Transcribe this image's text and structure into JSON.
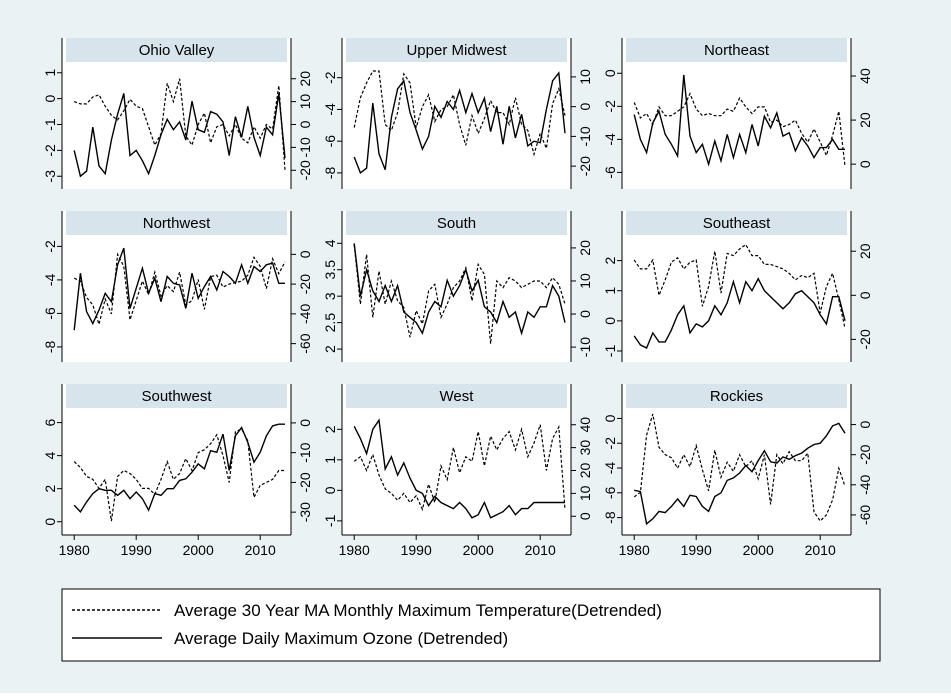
{
  "chart_data": {
    "type": "line",
    "layout": "3x3 small multiples, dual y-axes (left: ozone, right: temperature)",
    "x_ticks": [
      1980,
      1990,
      2000,
      2010
    ],
    "xlim": [
      1979,
      2014
    ],
    "legend": {
      "placement": "bottom",
      "entries": [
        {
          "label": "Average 30 Year MA Monthly Maximum Temperature(Detrended)",
          "style": "dashed"
        },
        {
          "label": "Average Daily Maximum Ozone (Detrended)",
          "style": "solid"
        }
      ]
    },
    "colors": {
      "figure_bg": "#eaf2f3",
      "plot_bg": "#ffffff",
      "strip": "#d8e4ec",
      "line": "#000000"
    },
    "panels": [
      {
        "title": "Ohio Valley",
        "left_ticks": [
          "-3",
          "-2",
          "-1",
          "0",
          "1"
        ],
        "left_lim": [
          -3.3,
          1.3
        ],
        "right_ticks": [
          "-20",
          "-10",
          "0",
          "10",
          "20"
        ],
        "right_lim": [
          -26,
          26
        ],
        "ozone": [
          -2.0,
          -3.0,
          -2.8,
          -1.1,
          -2.6,
          -2.9,
          -1.6,
          -0.6,
          0.2,
          -2.2,
          -2.0,
          -2.4,
          -2.9,
          -2.2,
          -1.4,
          -0.8,
          -1.2,
          -0.9,
          -1.6,
          -0.1,
          -1.2,
          -1.3,
          -0.5,
          -0.6,
          -0.9,
          -2.2,
          -0.7,
          -1.5,
          -0.3,
          -1.5,
          -2.2,
          -1.1,
          -1.4,
          0.2,
          -2.3
        ],
        "temperature": [
          10,
          9,
          9,
          12,
          13,
          8,
          4,
          2,
          6,
          11,
          8,
          7,
          -1,
          -9,
          -4,
          18,
          10,
          20,
          -5,
          -9,
          0,
          5,
          -8,
          -1,
          0,
          -5,
          0,
          -6,
          -8,
          -1,
          -6,
          0,
          -2,
          17,
          -20
        ]
      },
      {
        "title": "Upper Midwest",
        "left_ticks": [
          "-8",
          "-6",
          "-4",
          "-2"
        ],
        "left_lim": [
          -8.7,
          -1.2
        ],
        "right_ticks": [
          "-20",
          "-10",
          "0",
          "10"
        ],
        "right_lim": [
          -26,
          14
        ],
        "ozone": [
          -7.0,
          -8.0,
          -7.7,
          -3.6,
          -6.8,
          -7.8,
          -4.5,
          -2.7,
          -2.2,
          -4.2,
          -5.3,
          -6.5,
          -5.7,
          -3.8,
          -4.5,
          -3.5,
          -4.0,
          -2.8,
          -4.2,
          -3.0,
          -4.2,
          -3.3,
          -5.4,
          -3.8,
          -6.2,
          -3.8,
          -5.8,
          -4.3,
          -6.3,
          -6.0,
          -6.1,
          -4.0,
          -2.2,
          -1.7,
          -5.5
        ],
        "temperature": [
          -7,
          3,
          8,
          12,
          12,
          -6,
          -8,
          -2,
          11,
          8,
          -7,
          0,
          4,
          -5,
          -1,
          0,
          4,
          -6,
          -13,
          -3,
          -9,
          -4,
          2,
          -2,
          -2,
          -6,
          3,
          -6,
          -8,
          -16,
          -9,
          -14,
          1,
          6,
          -3
        ]
      },
      {
        "title": "Northeast",
        "left_ticks": [
          "-6",
          "-4",
          "-2",
          "0"
        ],
        "left_lim": [
          -6.7,
          0.5
        ],
        "right_ticks": [
          "0",
          "20",
          "40"
        ],
        "right_lim": [
          -9,
          45
        ],
        "ozone": [
          -2.5,
          -4.0,
          -4.8,
          -3.0,
          -2.3,
          -3.7,
          -4.3,
          -5.0,
          -0.1,
          -3.8,
          -4.8,
          -4.3,
          -5.5,
          -4.1,
          -5.3,
          -3.7,
          -5.1,
          -3.7,
          -4.8,
          -3.1,
          -4.4,
          -2.6,
          -3.3,
          -2.4,
          -3.8,
          -3.6,
          -4.7,
          -3.9,
          -4.4,
          -5.1,
          -4.5,
          -4.5,
          -4.0,
          -4.6,
          -4.6
        ],
        "temperature": [
          28,
          21,
          23,
          18,
          26,
          22,
          22,
          24,
          26,
          32,
          25,
          22,
          23,
          22,
          22,
          25,
          24,
          30,
          26,
          23,
          26,
          26,
          19,
          20,
          17,
          18,
          20,
          14,
          10,
          16,
          10,
          4,
          13,
          24,
          -1
        ]
      },
      {
        "title": "Northwest",
        "left_ticks": [
          "-8",
          "-6",
          "-4",
          "-2"
        ],
        "left_lim": [
          -8.6,
          -1.5
        ],
        "right_ticks": [
          "-60",
          "-40",
          "-20",
          "0"
        ],
        "right_lim": [
          -69,
          11
        ],
        "ozone": [
          -7.0,
          -3.6,
          -5.9,
          -6.6,
          -5.8,
          -4.8,
          -5.3,
          -3.1,
          -2.1,
          -5.7,
          -4.5,
          -3.3,
          -4.8,
          -3.9,
          -5.3,
          -3.8,
          -4.2,
          -4.3,
          -5.7,
          -3.6,
          -5.1,
          -4.4,
          -3.8,
          -4.6,
          -3.5,
          -3.8,
          -4.2,
          -3.1,
          -4.2,
          -3.2,
          -3.5,
          -3.1,
          -3.0,
          -4.2,
          -4.2
        ],
        "temperature": [
          -16,
          -18,
          -29,
          -34,
          -47,
          -30,
          -40,
          0,
          -8,
          -44,
          -31,
          -18,
          -27,
          -12,
          -28,
          -21,
          -25,
          -12,
          -34,
          -31,
          -17,
          -37,
          -15,
          -14,
          -22,
          -20,
          -19,
          -18,
          -14,
          -2,
          -8,
          -23,
          -3,
          -13,
          -5
        ]
      },
      {
        "title": "South",
        "left_ticks": [
          "2",
          "2.5",
          "3",
          "3.5",
          "4"
        ],
        "left_lim": [
          1.85,
          4.1
        ],
        "right_ticks": [
          "-10",
          "0",
          "10",
          "20"
        ],
        "right_lim": [
          -13,
          23
        ],
        "ozone": [
          4.0,
          3.0,
          3.5,
          3.1,
          2.9,
          3.2,
          2.9,
          3.2,
          2.7,
          2.6,
          2.5,
          2.3,
          2.7,
          2.9,
          2.8,
          3.3,
          3.0,
          3.2,
          3.5,
          3.1,
          3.3,
          2.8,
          2.7,
          2.5,
          2.9,
          2.6,
          2.7,
          2.3,
          2.7,
          2.6,
          2.8,
          2.8,
          3.2,
          3.0,
          2.5
        ],
        "temperature": [
          21,
          3,
          18,
          -1,
          13,
          3,
          10,
          4,
          2,
          -7,
          1,
          -3,
          7,
          9,
          -1,
          3,
          8,
          10,
          14,
          4,
          15,
          12,
          -9,
          10,
          8,
          11,
          10,
          8,
          9,
          10,
          10,
          8,
          11,
          9,
          3
        ]
      },
      {
        "title": "Southeast",
        "left_ticks": [
          "-1",
          "0",
          "1",
          "2"
        ],
        "left_lim": [
          -1.2,
          2.75
        ],
        "right_ticks": [
          "-20",
          "0",
          "20"
        ],
        "right_lim": [
          -28,
          26
        ],
        "ozone": [
          -0.5,
          -0.8,
          -0.9,
          -0.4,
          -0.7,
          -0.7,
          -0.3,
          0.2,
          0.5,
          -0.4,
          -0.1,
          -0.2,
          0.0,
          0.5,
          0.2,
          0.6,
          1.3,
          0.6,
          1.3,
          1.0,
          1.4,
          1.0,
          0.8,
          0.6,
          0.4,
          0.6,
          0.9,
          1.0,
          0.8,
          0.6,
          0.2,
          -0.1,
          0.8,
          0.8,
          0.0
        ],
        "temperature": [
          16,
          12,
          12,
          16,
          0,
          7,
          15,
          17,
          12,
          15,
          16,
          -5,
          4,
          20,
          1,
          19,
          18,
          21,
          23,
          18,
          18,
          14,
          14,
          13,
          12,
          10,
          7,
          9,
          8,
          10,
          -8,
          4,
          10,
          -2,
          -15
        ]
      },
      {
        "title": "Southwest",
        "left_ticks": [
          "0",
          "2",
          "4",
          "6"
        ],
        "left_lim": [
          -0.5,
          6.7
        ],
        "right_ticks": [
          "-30",
          "-20",
          "-10",
          "0"
        ],
        "right_lim": [
          -36,
          4
        ],
        "ozone": [
          1.0,
          0.6,
          1.2,
          1.7,
          2.0,
          1.9,
          1.9,
          1.6,
          1.9,
          1.4,
          1.8,
          1.4,
          0.7,
          1.7,
          1.6,
          2.0,
          2.0,
          2.5,
          2.6,
          3.0,
          3.5,
          3.2,
          4.3,
          4.2,
          5.3,
          3.1,
          5.2,
          5.7,
          4.8,
          3.6,
          4.2,
          5.2,
          5.8,
          5.9,
          5.9
        ],
        "temperature": [
          -13,
          -15,
          -18,
          -19,
          -22,
          -19,
          -33,
          -18,
          -16,
          -17,
          -19,
          -22,
          -22,
          -24,
          -19,
          -13,
          -19,
          -17,
          -12,
          -16,
          -10,
          -9,
          -7,
          -4,
          -11,
          -20,
          -3,
          -2,
          -6,
          -25,
          -21,
          -20,
          -19,
          -16,
          -16
        ]
      },
      {
        "title": "West",
        "left_ticks": [
          "-1",
          "0",
          "1",
          "2"
        ],
        "left_lim": [
          -1.3,
          2.6
        ],
        "right_ticks": [
          "0",
          "10",
          "20",
          "30",
          "40"
        ],
        "right_lim": [
          -6,
          46
        ],
        "ozone": [
          2.1,
          1.7,
          1.2,
          2.0,
          2.3,
          0.7,
          1.1,
          0.5,
          0.9,
          0.4,
          0.0,
          -0.1,
          -0.5,
          -0.2,
          -0.4,
          -0.5,
          -0.6,
          -0.4,
          -0.6,
          -0.9,
          -0.8,
          -0.4,
          -0.9,
          -0.8,
          -0.7,
          -0.5,
          -0.8,
          -0.6,
          -0.6,
          -0.4,
          -0.4,
          -0.4,
          -0.4,
          -0.4,
          -0.4
        ],
        "temperature": [
          24,
          26,
          20,
          27,
          18,
          12,
          10,
          7,
          10,
          6,
          9,
          3,
          14,
          6,
          22,
          16,
          30,
          19,
          26,
          24,
          37,
          22,
          35,
          29,
          34,
          37,
          29,
          38,
          26,
          32,
          40,
          20,
          34,
          39,
          3
        ]
      },
      {
        "title": "Rockies",
        "left_ticks": [
          "-8",
          "-6",
          "-4",
          "-2",
          "0"
        ],
        "left_lim": [
          -9.0,
          0.6
        ],
        "right_ticks": [
          "-60",
          "-40",
          "-20",
          "0"
        ],
        "right_lim": [
          -70,
          9
        ],
        "ozone": [
          -5.8,
          -5.9,
          -8.5,
          -8.1,
          -7.5,
          -7.6,
          -7.1,
          -6.5,
          -7.1,
          -6.2,
          -6.3,
          -7.1,
          -7.5,
          -6.3,
          -6.0,
          -5.0,
          -4.8,
          -4.4,
          -3.8,
          -4.3,
          -3.4,
          -2.6,
          -3.5,
          -3.6,
          -3.1,
          -3.3,
          -3.0,
          -2.8,
          -2.4,
          -2.1,
          -2.0,
          -1.4,
          -0.6,
          -0.4,
          -1.2
        ],
        "temperature": [
          -48,
          -45,
          -7,
          7,
          -15,
          -20,
          -22,
          -29,
          -20,
          -28,
          -14,
          -30,
          -44,
          -17,
          -35,
          -25,
          -31,
          -20,
          -28,
          -24,
          -36,
          -20,
          -53,
          -20,
          -26,
          -18,
          -24,
          -24,
          -19,
          -58,
          -64,
          -60,
          -50,
          -29,
          -41
        ]
      }
    ]
  }
}
